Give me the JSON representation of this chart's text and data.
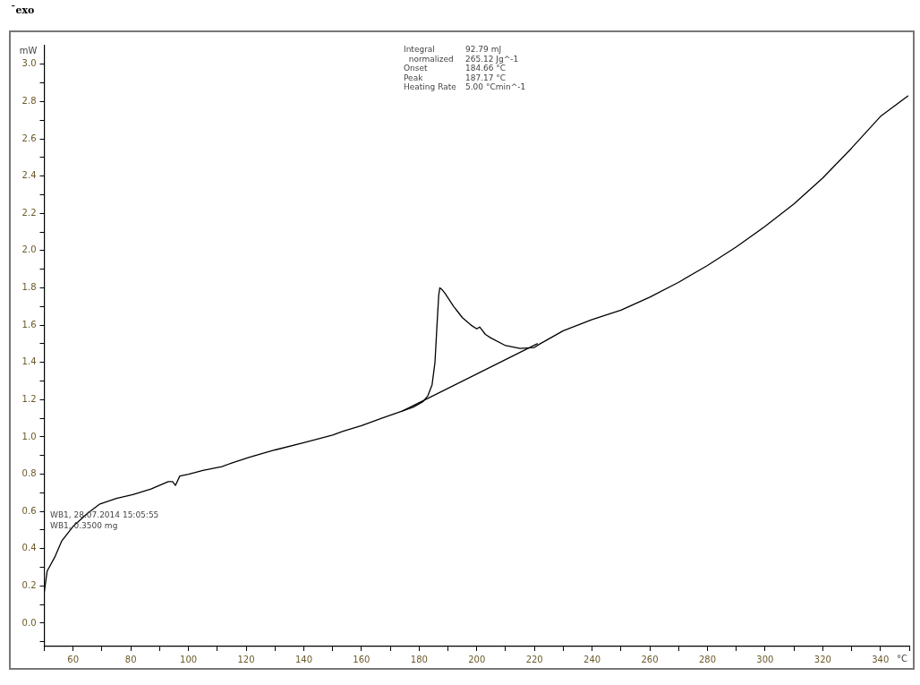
{
  "chart_data": {
    "type": "line",
    "xlabel": "°C",
    "ylabel": "mW",
    "xlim": [
      50,
      350
    ],
    "ylim": [
      -0.125,
      3.1
    ],
    "xticks": [
      {
        "value": 50,
        "label": null
      },
      60,
      {
        "value": 70,
        "label": null
      },
      80,
      {
        "value": 90,
        "label": null
      },
      100,
      {
        "value": 110,
        "label": null
      },
      120,
      {
        "value": 130,
        "label": null
      },
      140,
      {
        "value": 150,
        "label": null
      },
      160,
      {
        "value": 170,
        "label": null
      },
      180,
      {
        "value": 190,
        "label": null
      },
      200,
      {
        "value": 210,
        "label": null
      },
      220,
      {
        "value": 230,
        "label": null
      },
      240,
      {
        "value": 250,
        "label": null
      },
      260,
      {
        "value": 270,
        "label": null
      },
      280,
      {
        "value": 290,
        "label": null
      },
      300,
      {
        "value": 310,
        "label": null
      },
      320,
      {
        "value": 330,
        "label": null
      },
      340,
      {
        "value": 350,
        "label": null
      }
    ],
    "yticks": [
      {
        "value": -0.1,
        "label": null
      },
      {
        "value": 0,
        "label": "0.0"
      },
      {
        "value": 0.1,
        "label": null
      },
      {
        "value": 0.2,
        "label": "0.2"
      },
      {
        "value": 0.3,
        "label": null
      },
      {
        "value": 0.4,
        "label": "0.4"
      },
      {
        "value": 0.5,
        "label": null
      },
      {
        "value": 0.6,
        "label": "0.6"
      },
      {
        "value": 0.7,
        "label": null
      },
      {
        "value": 0.8,
        "label": "0.8"
      },
      {
        "value": 0.9,
        "label": null
      },
      {
        "value": 1.0,
        "label": "1.0"
      },
      {
        "value": 1.1,
        "label": null
      },
      {
        "value": 1.2,
        "label": "1.2"
      },
      {
        "value": 1.3,
        "label": null
      },
      {
        "value": 1.4,
        "label": "1.4"
      },
      {
        "value": 1.5,
        "label": null
      },
      {
        "value": 1.6,
        "label": "1.6"
      },
      {
        "value": 1.7,
        "label": null
      },
      {
        "value": 1.8,
        "label": "1.8"
      },
      {
        "value": 1.9,
        "label": null
      },
      {
        "value": 2.0,
        "label": "2.0"
      },
      {
        "value": 2.1,
        "label": null
      },
      {
        "value": 2.2,
        "label": "2.2"
      },
      {
        "value": 2.3,
        "label": null
      },
      {
        "value": 2.4,
        "label": "2.4"
      },
      {
        "value": 2.5,
        "label": null
      },
      {
        "value": 2.6,
        "label": "2.6"
      },
      {
        "value": 2.7,
        "label": null
      },
      {
        "value": 2.8,
        "label": "2.8"
      },
      {
        "value": 2.9,
        "label": null
      },
      {
        "value": 3.0,
        "label": "3.0"
      }
    ],
    "grid": false,
    "legend": false,
    "marker": "none",
    "line_style": "solid",
    "series": [
      {
        "color": "#000000",
        "x": [
          50,
          51,
          53.8,
          56,
          60,
          65,
          69.3,
          75,
          80.7,
          87,
          93,
          94.5,
          95.5,
          97,
          100,
          105,
          111.6,
          115,
          120.9,
          130,
          140.3,
          150,
          153.6,
          160,
          167,
          174.3,
          178,
          181.4,
          183,
          184.5,
          185.5,
          186.2,
          186.8,
          187.17,
          188,
          189,
          192,
          195,
          198,
          200,
          201,
          203,
          205,
          210,
          215,
          220,
          222,
          230,
          240,
          250,
          260,
          270,
          280,
          290,
          300,
          310,
          320,
          330,
          340,
          349.5
        ],
        "values": [
          0.17,
          0.28,
          0.36,
          0.44,
          0.52,
          0.59,
          0.64,
          0.67,
          0.69,
          0.72,
          0.76,
          0.76,
          0.74,
          0.79,
          0.8,
          0.82,
          0.84,
          0.86,
          0.89,
          0.93,
          0.97,
          1.01,
          1.03,
          1.06,
          1.1,
          1.14,
          1.16,
          1.19,
          1.22,
          1.28,
          1.4,
          1.6,
          1.76,
          1.8,
          1.79,
          1.77,
          1.7,
          1.64,
          1.6,
          1.58,
          1.59,
          1.55,
          1.53,
          1.49,
          1.475,
          1.48,
          1.5,
          1.57,
          1.63,
          1.68,
          1.75,
          1.83,
          1.92,
          2.02,
          2.13,
          2.25,
          2.39,
          2.55,
          2.72,
          2.83
        ]
      },
      {
        "color": "#000000",
        "x": [
          174.3,
          221
        ],
        "values": [
          1.14,
          1.5
        ]
      }
    ],
    "annotations": [
      "¯exo",
      "Integral\t92.79 mJ",
      "  normalized\t265.12 Jg^-1",
      "Onset\t184.66 °C",
      "Peak\t187.17 °C",
      "Heating Rate\t5.00 °Cmin^-1",
      "WB1, 28.07.2014 15:05:55",
      "WB1, 0.3500 mg"
    ]
  }
}
